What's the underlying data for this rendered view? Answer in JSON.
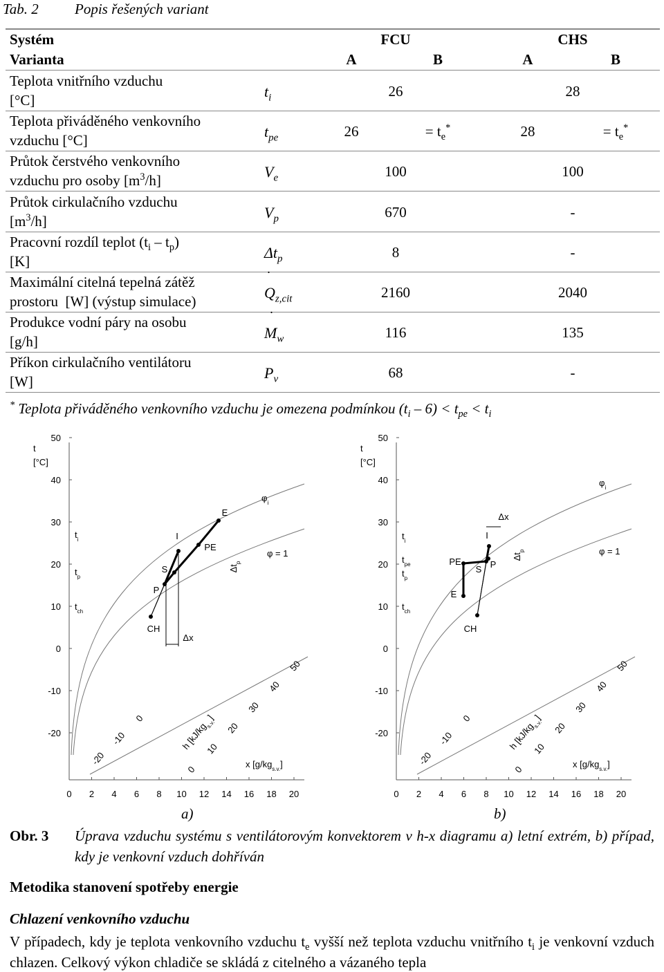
{
  "title": {
    "number": "Tab. 2",
    "text": "Popis řešených variant"
  },
  "table": {
    "header": {
      "system": "Systém",
      "variant": "Varianta",
      "groups": [
        "FCU",
        "CHS"
      ],
      "variants": [
        "A",
        "B",
        "A",
        "B"
      ]
    },
    "rows": [
      {
        "label": [
          [
            "Teplota vnitřního vzduchu"
          ],
          [
            "[°C]"
          ]
        ],
        "symbol": [
          "t",
          {
            "sub": "i"
          }
        ],
        "values": [
          "26",
          "28"
        ]
      },
      {
        "label": [
          [
            "Teplota přiváděného venkovního"
          ],
          [
            "vzduchu [°C]"
          ]
        ],
        "symbol": [
          "t",
          {
            "sub": "pe"
          }
        ],
        "values": [
          "26",
          [
            "= t",
            {
              "sub": "e"
            },
            {
              "sup": "*"
            }
          ],
          "28",
          [
            "= t",
            {
              "sub": "e"
            },
            {
              "sup": "*"
            }
          ]
        ]
      },
      {
        "label": [
          [
            "Průtok čerstvého venkovního"
          ],
          [
            "vzduchu pro osoby [m",
            {
              "sup": "3"
            },
            "/h]"
          ]
        ],
        "symbol": [
          "V",
          {
            "sub": "e"
          }
        ],
        "values": [
          "100",
          "100"
        ]
      },
      {
        "label": [
          [
            "Průtok cirkulačního vzduchu"
          ],
          [
            "[m",
            {
              "sup": "3"
            },
            "/h]"
          ]
        ],
        "symbol": [
          "V",
          {
            "sub": "p"
          }
        ],
        "values": [
          "670",
          "-"
        ]
      },
      {
        "label": [
          [
            "Pracovní rozdíl teplot (t",
            {
              "sub": "i"
            },
            " – t",
            {
              "sub": "p"
            },
            ")"
          ],
          [
            "[K]"
          ]
        ],
        "symbol": [
          "Δt",
          {
            "sub": "p"
          }
        ],
        "values": [
          "8",
          "-"
        ]
      },
      {
        "label": [
          [
            "Maximální citelná tepelná zátěž"
          ],
          [
            "prostoru  [W] (výstup simulace)"
          ]
        ],
        "symbol": [
          "Q",
          {
            "sub": "z,cit"
          }
        ],
        "values": [
          "2160",
          "2040"
        ]
      },
      {
        "label": [
          [
            "Produkce vodní páry na osobu"
          ],
          [
            "[g/h]"
          ]
        ],
        "symbol": [
          "M",
          {
            "sub": "w"
          }
        ],
        "values": [
          "116",
          "135"
        ]
      },
      {
        "label": [
          [
            "Příkon cirkulačního ventilátoru"
          ],
          [
            "[W]"
          ]
        ],
        "symbol": [
          "P",
          {
            "sub": "v"
          }
        ],
        "values": [
          "68",
          "-"
        ]
      }
    ],
    "footnote": [
      {
        "sup": "*"
      },
      " Teplota přiváděného venkovního vzduchu je omezena podmínkou (t",
      {
        "sub": "i"
      },
      " – 6) < t",
      {
        "sub": "pe"
      },
      " < t",
      {
        "sub": "i"
      }
    ]
  },
  "figures": [
    {
      "caption": "a)",
      "axis": "t",
      "unit": "[°C]",
      "yticks": [
        50,
        40,
        30,
        20,
        10,
        0,
        -10,
        -20
      ],
      "xticks": [
        0,
        2,
        4,
        6,
        8,
        10,
        12,
        14,
        16,
        18,
        20
      ],
      "scale_1": [
        -20,
        -10,
        0
      ],
      "scale_2": [
        0,
        10,
        20,
        30,
        40,
        50
      ],
      "h_label": [
        "h [kJ/kg",
        {
          "sub": "s.v."
        },
        "]"
      ],
      "x_label": [
        "x [g/kg",
        {
          "sub": "s.v."
        },
        "]"
      ],
      "levels": [
        [
          "t",
          {
            "sub": "i"
          }
        ],
        [
          "t",
          {
            "sub": "p"
          }
        ],
        [
          "t",
          {
            "sub": "ch"
          }
        ]
      ],
      "points": [
        "CH",
        "P",
        "S",
        "I",
        "PE",
        "E"
      ],
      "phi_i": [
        "φ",
        {
          "sub": "i"
        }
      ],
      "phi_1": "φ = 1",
      "dx": "Δx",
      "dtp": [
        "Δt",
        {
          "sub": "p"
        }
      ]
    },
    {
      "caption": "b)",
      "axis": "t",
      "unit": "[°C]",
      "yticks": [
        50,
        40,
        30,
        20,
        10,
        0,
        -10,
        -20
      ],
      "xticks": [
        0,
        2,
        4,
        6,
        8,
        10,
        12,
        14,
        16,
        18,
        20
      ],
      "scale_1": [
        -20,
        -10,
        0
      ],
      "scale_2": [
        0,
        10,
        20,
        30,
        40,
        50
      ],
      "h_label": [
        "h [kJ/kg",
        {
          "sub": "s.v."
        },
        "]"
      ],
      "x_label": [
        "x [g/kg",
        {
          "sub": "s.v."
        },
        "]"
      ],
      "levels": [
        [
          "t",
          {
            "sub": "i"
          }
        ],
        [
          "t",
          {
            "sub": "pe"
          }
        ],
        [
          "t",
          {
            "sub": "p"
          }
        ],
        [
          "t",
          {
            "sub": "ch"
          }
        ]
      ],
      "points": [
        "CH",
        "E",
        "PE",
        "S",
        "P",
        "I"
      ],
      "phi_i": [
        "φ",
        {
          "sub": "i"
        }
      ],
      "phi_1": "φ = 1",
      "dx": "Δx",
      "dtp": [
        "Δt",
        {
          "sub": "p"
        }
      ]
    }
  ],
  "caption": {
    "label": "Obr. 3",
    "text": "Úprava vzduchu systému s ventilátorovým konvektorem v h-x diagramu a) letní extrém, b) případ, kdy je venkovní vzduch dohříván"
  },
  "heading": "Metodika stanovení spotřeby energie",
  "subheading": "Chlazení venkovního vzduchu",
  "paragraph": [
    "V případech, kdy je teplota venkovního vzduchu t",
    {
      "sub": "e"
    },
    " vyšší než teplota vzduchu vnitřního t",
    {
      "sub": "i"
    },
    " je venkovní vzduch chlazen. Celkový výkon chladiče se skládá z citelného a vázaného tepla"
  ]
}
